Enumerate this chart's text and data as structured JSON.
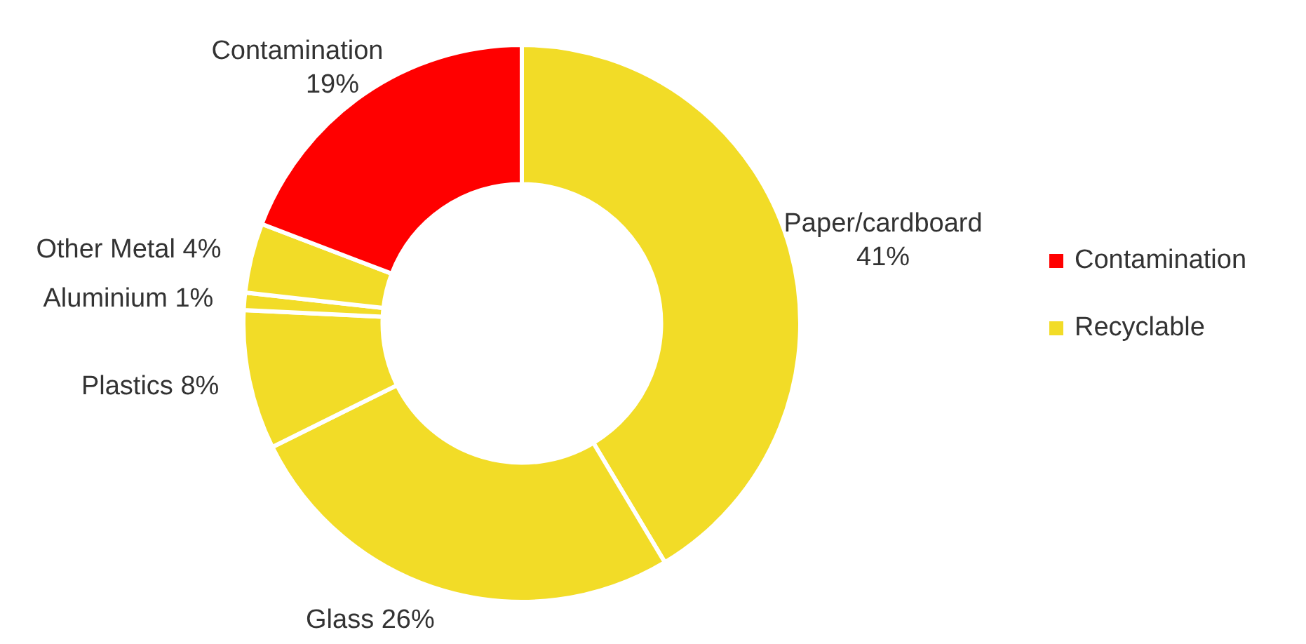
{
  "chart_data": {
    "type": "donut",
    "categories": [
      "Paper/cardboard",
      "Glass",
      "Plastics",
      "Aluminium",
      "Other Metal",
      "Contamination"
    ],
    "values": [
      41,
      26,
      8,
      1,
      4,
      19
    ],
    "value_labels": [
      "41%",
      "26%",
      "8%",
      "1%",
      "4%",
      "19%"
    ],
    "colors": [
      "#f2dc27",
      "#f2dc27",
      "#f2dc27",
      "#f2dc27",
      "#f2dc27",
      "#ff0000"
    ],
    "annotations": [
      "Contamination",
      "Recyclable"
    ]
  }
}
